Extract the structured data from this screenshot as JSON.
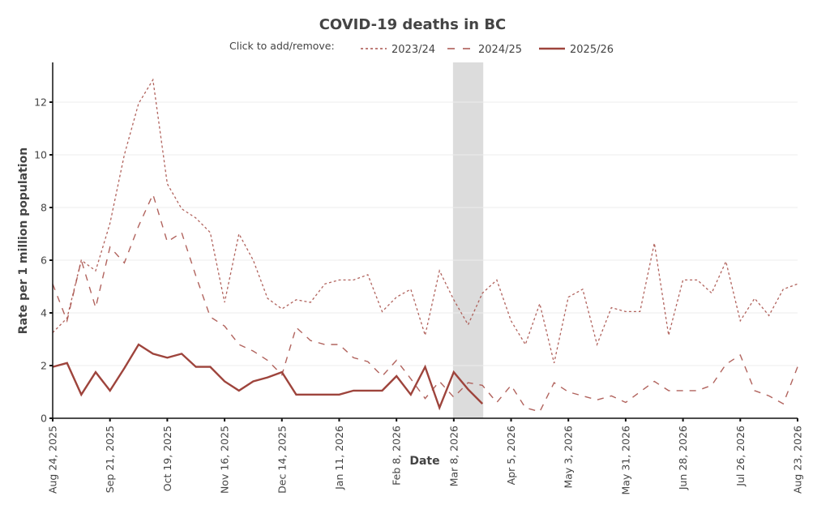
{
  "chart_data": {
    "type": "line",
    "title": "COVID-19 deaths in BC",
    "xlabel": "Date",
    "ylabel": "Rate per 1 million population",
    "legend_prefix": "Click to add/remove:",
    "legend_position": "top-center",
    "grid": true,
    "ylim": [
      0,
      13.5
    ],
    "y_ticks": [
      0,
      2,
      4,
      6,
      8,
      10,
      12
    ],
    "x_tick_labels": [
      "Aug 24, 2025",
      "Sep 21, 2025",
      "Oct 19, 2025",
      "Nov 16, 2025",
      "Dec 14, 2025",
      "Jan 11, 2026",
      "Feb 8, 2026",
      "Mar 8, 2026",
      "Apr 5, 2026",
      "May 3, 2026",
      "May 31, 2026",
      "Jun 28, 2026",
      "Jul 26, 2026",
      "Aug 23, 2026"
    ],
    "x_tick_week_index": [
      0,
      4,
      8,
      12,
      16,
      20,
      24,
      28,
      32,
      36,
      40,
      44,
      48,
      52
    ],
    "x_range_weeks": [
      0,
      52
    ],
    "x_unit": "weeks since Aug 24, 2025",
    "highlight_band_weeks": [
      28,
      30
    ],
    "series": [
      {
        "name": "2023/24",
        "style": "dotted",
        "color": "#a8524b",
        "values": [
          3.25,
          3.8,
          6.0,
          5.6,
          7.4,
          10.0,
          11.95,
          12.85,
          8.9,
          7.95,
          7.6,
          7.05,
          4.4,
          7.0,
          6.0,
          4.55,
          4.15,
          4.5,
          4.4,
          5.1,
          5.25,
          5.25,
          5.45,
          4.05,
          4.6,
          4.9,
          3.15,
          5.6,
          4.5,
          3.55,
          4.75,
          5.25,
          3.7,
          2.8,
          4.35,
          2.1,
          4.6,
          4.9,
          2.8,
          4.2,
          4.05,
          4.05,
          6.65,
          3.15,
          5.25,
          5.25,
          4.75,
          5.95,
          3.7,
          4.55,
          3.9,
          4.9,
          5.1
        ]
      },
      {
        "name": "2024/25",
        "style": "dashed",
        "color": "#a8524b",
        "values": [
          5.1,
          3.7,
          6.0,
          4.2,
          6.5,
          5.9,
          7.3,
          8.5,
          6.7,
          7.05,
          5.4,
          3.85,
          3.5,
          2.8,
          2.55,
          2.2,
          1.65,
          3.45,
          2.95,
          2.8,
          2.8,
          2.3,
          2.15,
          1.6,
          2.2,
          1.5,
          0.75,
          1.4,
          0.8,
          1.35,
          1.25,
          0.6,
          1.25,
          0.4,
          0.25,
          1.35,
          1.0,
          0.85,
          0.7,
          0.85,
          0.6,
          1.0,
          1.4,
          1.05,
          1.05,
          1.05,
          1.25,
          2.05,
          2.4,
          1.05,
          0.85,
          0.55,
          1.95
        ]
      },
      {
        "name": "2025/26",
        "style": "solid",
        "color": "#9e443c",
        "values": [
          1.95,
          2.1,
          0.9,
          1.75,
          1.05,
          1.9,
          2.8,
          2.45,
          2.3,
          2.45,
          1.95,
          1.95,
          1.4,
          1.05,
          1.4,
          1.55,
          1.75,
          0.9,
          0.9,
          0.9,
          0.9,
          1.05,
          1.05,
          1.05,
          1.6,
          0.9,
          1.95,
          0.4,
          1.75,
          1.1,
          0.55
        ]
      }
    ]
  },
  "colors": {
    "highlight_band": "#dcdcdc",
    "text": "#444444"
  }
}
